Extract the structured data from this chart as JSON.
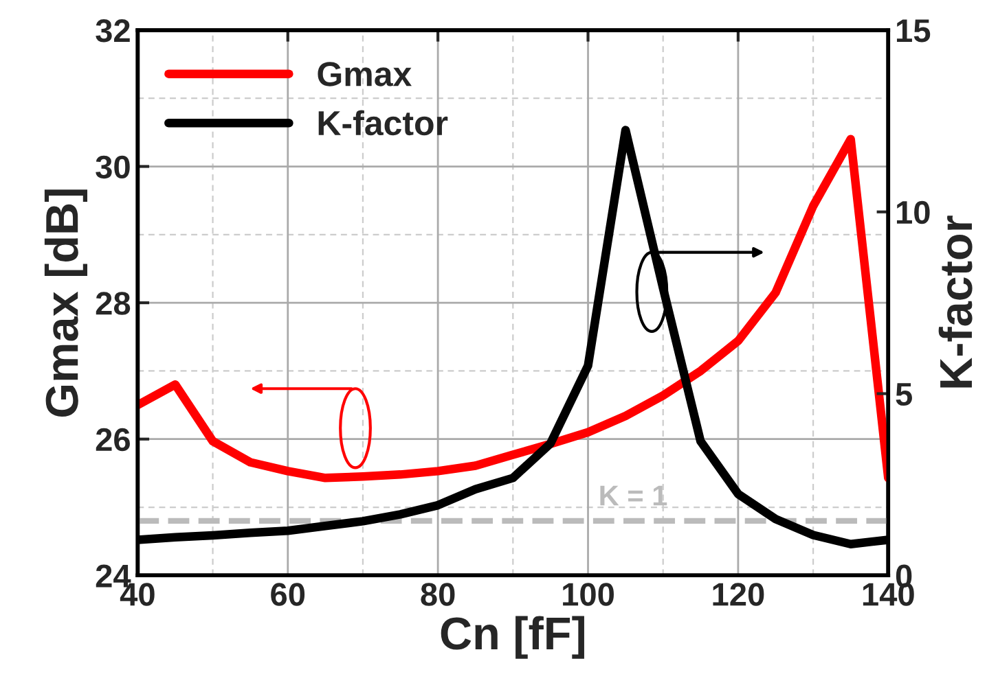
{
  "chart_data": {
    "type": "line",
    "xlabel": "Cn [fF]",
    "ylabel": "Gmax [dB]",
    "y2label": "K-factor",
    "x": [
      40,
      45,
      50,
      55,
      60,
      65,
      70,
      75,
      80,
      85,
      90,
      95,
      100,
      105,
      110,
      115,
      120,
      125,
      130,
      135,
      140
    ],
    "series": [
      {
        "name": "Gmax",
        "color": "#ff0000",
        "values": [
          26.5,
          26.8,
          25.97,
          25.66,
          25.53,
          25.43,
          25.45,
          25.48,
          25.53,
          25.61,
          25.77,
          25.93,
          26.1,
          26.34,
          26.64,
          27.0,
          27.44,
          28.15,
          29.42,
          30.4,
          25.43
        ]
      },
      {
        "name": "K-factor",
        "color": "#000000",
        "axis": "y2",
        "values": [
          0.98,
          1.05,
          1.1,
          1.17,
          1.23,
          1.36,
          1.49,
          1.68,
          1.93,
          2.37,
          2.68,
          3.63,
          5.77,
          12.25,
          7.9,
          3.69,
          2.24,
          1.55,
          1.11,
          0.86,
          0.98
        ]
      }
    ],
    "xlim": [
      40,
      140
    ],
    "xticks": [
      40,
      60,
      80,
      100,
      120,
      140
    ],
    "ylim": [
      24,
      32
    ],
    "yticks": [
      24,
      26,
      28,
      30,
      32
    ],
    "y2lim": [
      0,
      15
    ],
    "y2ticks": [
      0,
      5,
      10,
      15
    ],
    "ref_lines": [
      {
        "axis": "y2",
        "value": 1.5,
        "label": "K = 1",
        "color": "#bbbbbb",
        "line_style": "dashed"
      }
    ],
    "grid": true,
    "legend": "top left",
    "marker": "none",
    "line_style": "solid"
  }
}
